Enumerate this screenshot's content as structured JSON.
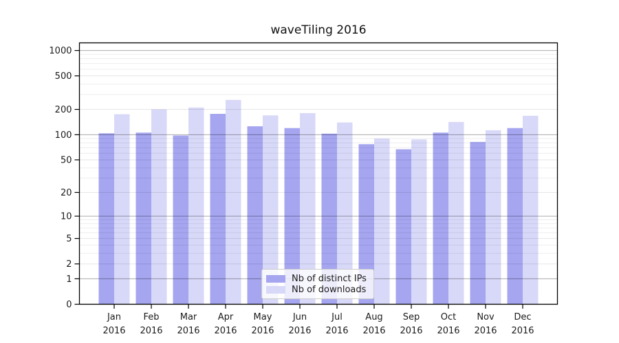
{
  "title": "waveTiling 2016",
  "legend": {
    "items": [
      {
        "label": "Nb of distinct IPs",
        "color": "#a5a5f0"
      },
      {
        "label": "Nb of downloads",
        "color": "#d8d8f8"
      }
    ]
  },
  "chart_data": {
    "type": "bar",
    "title": "waveTiling 2016",
    "year": "2016",
    "categories": [
      "Jan",
      "Feb",
      "Mar",
      "Apr",
      "May",
      "Jun",
      "Jul",
      "Aug",
      "Sep",
      "Oct",
      "Nov",
      "Dec"
    ],
    "series": [
      {
        "name": "Nb of distinct IPs",
        "color": "#a5a5f0",
        "values": [
          104,
          106,
          98,
          177,
          126,
          120,
          103,
          77,
          67,
          106,
          82,
          120
        ]
      },
      {
        "name": "Nb of downloads",
        "color": "#d8d8f8",
        "values": [
          175,
          200,
          211,
          260,
          170,
          181,
          140,
          90,
          88,
          142,
          113,
          168
        ]
      }
    ],
    "y_scale": "log10(value+1)",
    "y_ticks": [
      0,
      1,
      2,
      5,
      10,
      20,
      50,
      100,
      200,
      500,
      1000
    ],
    "y_minor_gridlines": [
      3,
      4,
      6,
      7,
      8,
      9,
      30,
      40,
      60,
      70,
      80,
      90,
      300,
      400,
      600,
      700,
      800,
      900
    ],
    "ylim": [
      0,
      1230
    ],
    "grid": true,
    "legend_position": "lower center",
    "axis_color": "#000000",
    "text_color": "#1a1a1a",
    "gridline_color_pow10": "#b3b3b3",
    "gridline_color_light": "#ebebeb"
  }
}
